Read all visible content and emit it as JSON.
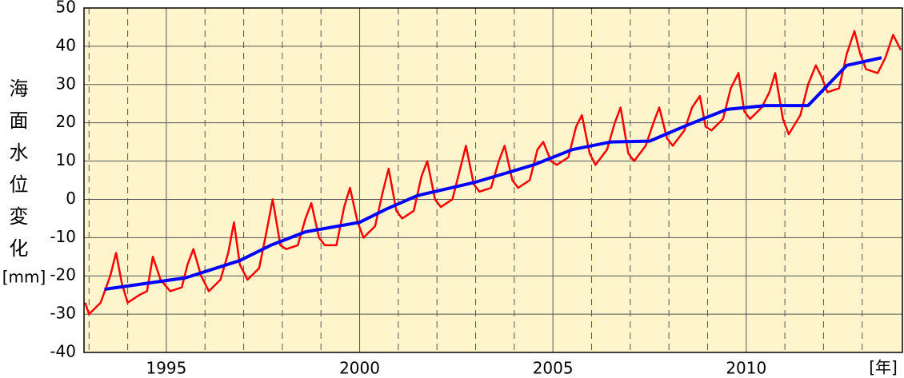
{
  "chart_data": {
    "type": "line",
    "ylabel": "海面水位変化",
    "yunit": "[mm]",
    "xlabel": "[年]",
    "xlim": [
      1992.87,
      2014.04
    ],
    "ylim": [
      -40,
      50
    ],
    "xticks": [
      1995,
      2000,
      2005,
      2010
    ],
    "xgrid_minor": [
      1993,
      1994,
      1996,
      1997,
      1998,
      1999,
      2001,
      2002,
      2003,
      2004,
      2006,
      2007,
      2008,
      2009,
      2011,
      2012,
      2013
    ],
    "yticks": [
      -40,
      -30,
      -20,
      -10,
      0,
      10,
      20,
      30,
      40,
      50
    ],
    "grid": true,
    "background": "#fff5cc",
    "series": [
      {
        "color": "#ff0000",
        "x": [
          1992.9,
          1993.0,
          1993.3,
          1993.55,
          1993.7,
          1993.85,
          1994.0,
          1994.3,
          1994.5,
          1994.65,
          1994.85,
          1995.1,
          1995.4,
          1995.55,
          1995.7,
          1995.9,
          1996.1,
          1996.4,
          1996.6,
          1996.75,
          1996.9,
          1997.1,
          1997.4,
          1997.6,
          1997.75,
          1997.95,
          1998.1,
          1998.4,
          1998.6,
          1998.75,
          1998.95,
          1999.1,
          1999.4,
          1999.6,
          1999.75,
          1999.95,
          2000.1,
          2000.4,
          2000.6,
          2000.75,
          2000.95,
          2001.1,
          2001.4,
          2001.6,
          2001.75,
          2001.95,
          2002.1,
          2002.4,
          2002.6,
          2002.75,
          2002.95,
          2003.1,
          2003.4,
          2003.6,
          2003.75,
          2003.95,
          2004.1,
          2004.4,
          2004.6,
          2004.75,
          2004.95,
          2005.1,
          2005.4,
          2005.6,
          2005.75,
          2005.95,
          2006.1,
          2006.4,
          2006.6,
          2006.75,
          2006.95,
          2007.1,
          2007.4,
          2007.6,
          2007.75,
          2007.95,
          2008.1,
          2008.4,
          2008.6,
          2008.8,
          2008.95,
          2009.1,
          2009.4,
          2009.6,
          2009.8,
          2009.95,
          2010.1,
          2010.4,
          2010.6,
          2010.75,
          2010.95,
          2011.1,
          2011.4,
          2011.6,
          2011.8,
          2011.95,
          2012.1,
          2012.4,
          2012.6,
          2012.8,
          2012.95,
          2013.1,
          2013.4,
          2013.6,
          2013.8,
          2014.0
        ],
        "values": [
          -27,
          -30,
          -27,
          -20,
          -14,
          -22,
          -27,
          -25,
          -24,
          -15,
          -21,
          -24,
          -23,
          -17,
          -13,
          -20,
          -24,
          -21,
          -14,
          -6,
          -17,
          -21,
          -18,
          -8,
          0,
          -12,
          -13,
          -12,
          -5,
          -1,
          -10,
          -12,
          -12,
          -2,
          3,
          -6,
          -10,
          -7,
          2,
          8,
          -3,
          -5,
          -3,
          6,
          10,
          0,
          -2,
          0,
          8,
          14,
          4,
          2,
          3,
          10,
          14,
          5,
          3,
          5,
          13,
          15,
          10,
          9,
          11,
          19,
          22,
          12,
          9,
          13,
          20,
          24,
          12,
          10,
          14,
          20,
          24,
          16,
          14,
          18,
          24,
          27,
          19,
          18,
          21,
          29,
          33,
          23,
          21,
          24,
          28,
          33,
          21,
          17,
          22,
          30,
          35,
          32,
          28,
          29,
          38,
          44,
          38,
          34,
          33,
          37,
          43,
          39
        ]
      },
      {
        "color": "#0000ff",
        "x": [
          1993.4,
          1995.5,
          1996.9,
          1997.7,
          1998.6,
          2000.0,
          2000.7,
          2001.5,
          2003.0,
          2004.5,
          2005.5,
          2006.5,
          2007.5,
          2008.5,
          2009.5,
          2010.5,
          2011.6,
          2012.6,
          2013.5
        ],
        "values": [
          -23.5,
          -20.5,
          -16,
          -12,
          -8.5,
          -6,
          -2.5,
          1,
          4.5,
          9,
          13,
          15,
          15.2,
          19.5,
          23.5,
          24.5,
          24.5,
          35,
          37
        ]
      }
    ]
  }
}
